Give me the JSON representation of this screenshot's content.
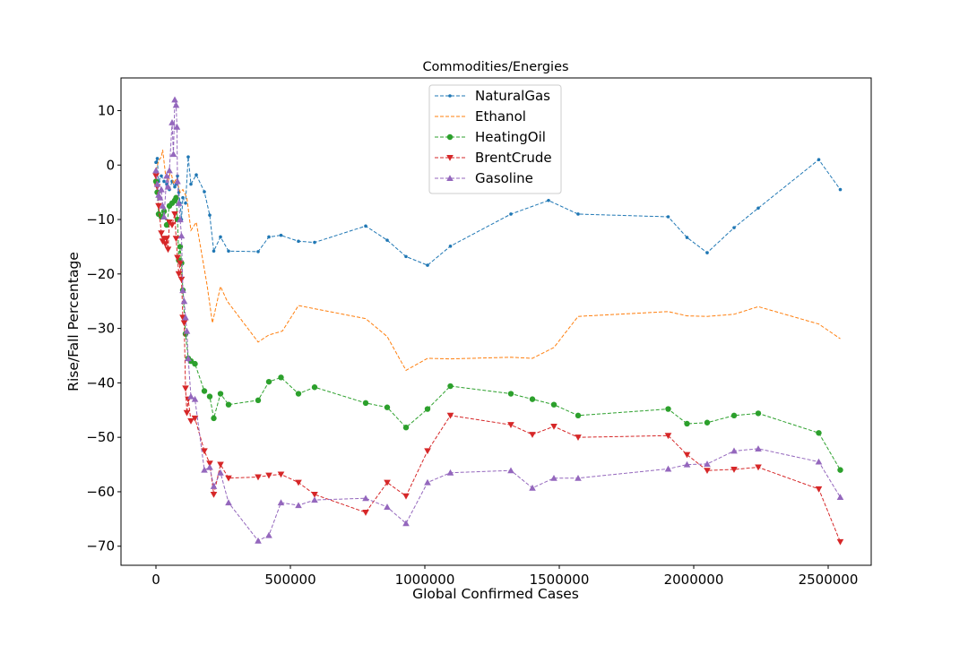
{
  "chart_data": {
    "type": "line",
    "title": "Commodities/Energies",
    "xlabel": "Global Confirmed Cases",
    "ylabel": "Rise/Fall Percentage",
    "xlim": [
      -130000,
      2660000
    ],
    "ylim": [
      -73.5,
      16
    ],
    "xticks": [
      0,
      500000,
      1000000,
      1500000,
      2000000,
      2500000
    ],
    "xtick_labels": [
      "0",
      "500000",
      "1000000",
      "1500000",
      "2000000",
      "2500000"
    ],
    "yticks": [
      -70,
      -60,
      -50,
      -40,
      -30,
      -20,
      -10,
      0,
      10
    ],
    "ytick_labels": [
      "−70",
      "−60",
      "−50",
      "−40",
      "−30",
      "−20",
      "−10",
      "0",
      "10"
    ],
    "grid": false,
    "legend_position": "upper center",
    "series": [
      {
        "name": "NaturalGas",
        "color": "#1f77b4",
        "marker": "point",
        "x": [
          0,
          5000,
          10000,
          20000,
          30000,
          40000,
          50000,
          60000,
          70000,
          75000,
          80000,
          85000,
          90000,
          95000,
          100000,
          110000,
          120000,
          130000,
          150000,
          180000,
          200000,
          215000,
          240000,
          270000,
          380000,
          420000,
          465000,
          530000,
          590000,
          780000,
          860000,
          930000,
          1010000,
          1095000,
          1320000,
          1460000,
          1570000,
          1905000,
          1975000,
          2050000,
          2150000,
          2240000,
          2465000,
          2545000
        ],
        "y": [
          0.5,
          1.2,
          -3.0,
          -2.0,
          -3.0,
          -3.5,
          -4.5,
          -3.0,
          -4.0,
          -3.5,
          -2.0,
          -5.0,
          -7.0,
          -10.0,
          -6.0,
          -7.0,
          1.5,
          -3.5,
          -1.8,
          -4.9,
          -9.2,
          -15.8,
          -13.2,
          -15.8,
          -15.9,
          -13.2,
          -12.9,
          -14.0,
          -14.2,
          -11.2,
          -13.8,
          -16.8,
          -18.4,
          -14.9,
          -9.0,
          -6.5,
          -9.0,
          -9.5,
          -13.3,
          -16.1,
          -11.5,
          -7.9,
          1.0,
          -4.5
        ]
      },
      {
        "name": "Ethanol",
        "color": "#ff7f0e",
        "marker": "none",
        "x": [
          0,
          10000,
          20000,
          25000,
          35000,
          45000,
          55000,
          65000,
          75000,
          90000,
          100000,
          115000,
          130000,
          150000,
          190000,
          210000,
          240000,
          265000,
          380000,
          420000,
          470000,
          530000,
          780000,
          860000,
          930000,
          1010000,
          1095000,
          1320000,
          1400000,
          1480000,
          1570000,
          1905000,
          1975000,
          2050000,
          2150000,
          2240000,
          2465000,
          2545000
        ],
        "y": [
          -1.0,
          0.8,
          1.5,
          2.8,
          -1.5,
          -3.0,
          -1.0,
          -3.5,
          -2.5,
          -5.0,
          -4.5,
          -6.0,
          -12.0,
          -10.5,
          -22.0,
          -29.0,
          -22.3,
          -25.0,
          -32.5,
          -31.2,
          -30.5,
          -25.8,
          -28.2,
          -31.5,
          -37.7,
          -35.5,
          -35.6,
          -35.3,
          -35.5,
          -33.5,
          -27.8,
          -26.9,
          -27.7,
          -27.8,
          -27.4,
          -26.0,
          -29.2,
          -31.9
        ]
      },
      {
        "name": "HeatingOil",
        "color": "#2ca02c",
        "marker": "circle",
        "x": [
          0,
          5000,
          10000,
          20000,
          30000,
          40000,
          50000,
          60000,
          70000,
          75000,
          80000,
          85000,
          90000,
          95000,
          100000,
          110000,
          120000,
          130000,
          145000,
          180000,
          200000,
          215000,
          240000,
          270000,
          380000,
          420000,
          465000,
          530000,
          590000,
          780000,
          860000,
          930000,
          1010000,
          1095000,
          1320000,
          1400000,
          1480000,
          1570000,
          1905000,
          1975000,
          2050000,
          2150000,
          2240000,
          2465000,
          2545000
        ],
        "y": [
          -3.0,
          -5.0,
          -9.0,
          -9.5,
          -8.5,
          -11.0,
          -7.5,
          -7.0,
          -6.5,
          -6.0,
          -10.0,
          -17.5,
          -15.0,
          -18.0,
          -23.0,
          -31.0,
          -35.5,
          -36.0,
          -36.5,
          -41.5,
          -42.5,
          -46.5,
          -42.0,
          -44.0,
          -43.2,
          -39.8,
          -39.0,
          -42.0,
          -40.8,
          -43.7,
          -44.5,
          -48.2,
          -44.8,
          -40.6,
          -42.0,
          -43.0,
          -44.0,
          -46.0,
          -44.8,
          -47.5,
          -47.3,
          -46.0,
          -45.6,
          -49.2,
          -56.0
        ]
      },
      {
        "name": "BrentCrude",
        "color": "#d62728",
        "marker": "triangle-down",
        "x": [
          0,
          5000,
          10000,
          20000,
          25000,
          30000,
          35000,
          40000,
          45000,
          50000,
          60000,
          70000,
          75000,
          80000,
          85000,
          90000,
          95000,
          100000,
          105000,
          110000,
          115000,
          120000,
          130000,
          145000,
          180000,
          200000,
          215000,
          240000,
          270000,
          380000,
          420000,
          465000,
          530000,
          590000,
          780000,
          860000,
          930000,
          1010000,
          1095000,
          1320000,
          1400000,
          1480000,
          1570000,
          1905000,
          1975000,
          2050000,
          2150000,
          2240000,
          2465000,
          2545000
        ],
        "y": [
          -2.0,
          -4.0,
          -7.5,
          -12.5,
          -14.0,
          -13.5,
          -14.5,
          -13.5,
          -15.5,
          -10.5,
          -11.0,
          -9.0,
          -13.5,
          -17.0,
          -20.0,
          -18.0,
          -21.0,
          -28.0,
          -29.0,
          -41.0,
          -45.5,
          -43.0,
          -47.0,
          -46.5,
          -52.5,
          -54.8,
          -60.5,
          -55.0,
          -57.5,
          -57.3,
          -57.0,
          -56.8,
          -58.3,
          -60.5,
          -63.8,
          -58.3,
          -60.8,
          -52.5,
          -46.0,
          -47.7,
          -49.5,
          -48.0,
          -50.0,
          -49.7,
          -53.2,
          -56.1,
          -55.9,
          -55.5,
          -59.5,
          -69.2
        ]
      },
      {
        "name": "Gasoline",
        "color": "#9467bd",
        "marker": "triangle-up",
        "x": [
          0,
          5000,
          10000,
          15000,
          20000,
          25000,
          30000,
          40000,
          45000,
          50000,
          60000,
          65000,
          70000,
          75000,
          78000,
          80000,
          85000,
          90000,
          95000,
          100000,
          105000,
          110000,
          115000,
          120000,
          130000,
          145000,
          180000,
          200000,
          215000,
          240000,
          270000,
          380000,
          420000,
          465000,
          530000,
          590000,
          780000,
          860000,
          930000,
          1010000,
          1095000,
          1320000,
          1400000,
          1480000,
          1570000,
          1905000,
          1975000,
          2050000,
          2150000,
          2240000,
          2465000,
          2545000
        ],
        "y": [
          -1.0,
          -3.5,
          -5.5,
          -6.0,
          -4.5,
          -7.5,
          -9.5,
          -2.0,
          -4.0,
          -1.0,
          7.8,
          2.0,
          12.0,
          11.0,
          7.0,
          -3.0,
          -7.0,
          -10.0,
          -13.0,
          -23.0,
          -25.0,
          -28.0,
          -30.5,
          -35.5,
          -42.5,
          -43.0,
          -56.0,
          -55.5,
          -59.0,
          -56.5,
          -62.0,
          -69.0,
          -68.0,
          -62.0,
          -62.5,
          -61.5,
          -61.2,
          -62.8,
          -65.8,
          -58.3,
          -56.5,
          -56.1,
          -59.3,
          -57.5,
          -57.5,
          -55.8,
          -55.0,
          -54.9,
          -52.5,
          -52.1,
          -54.5,
          -61.0
        ]
      }
    ]
  }
}
